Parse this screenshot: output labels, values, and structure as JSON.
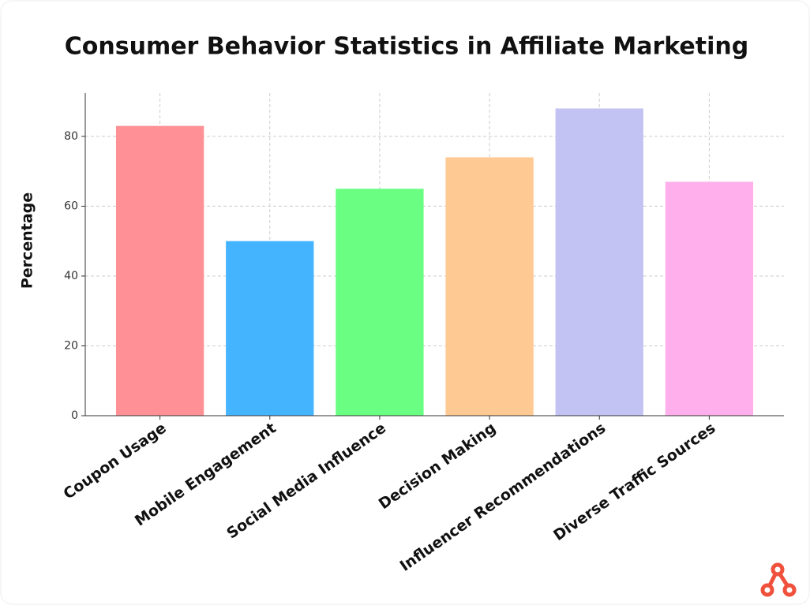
{
  "chart_data": {
    "type": "bar",
    "title": "Consumer Behavior Statistics in Affiliate Marketing",
    "y_label": "Percentage",
    "categories": [
      "Coupon Usage",
      "Mobile Engagement",
      "Social Media Influence",
      "Decision Making",
      "Influencer Recommendations",
      "Diverse Traffic Sources"
    ],
    "values": [
      83,
      50,
      65,
      74,
      88,
      67
    ],
    "colors": [
      "#ff9196",
      "#45b4ff",
      "#6aff83",
      "#ffc993",
      "#c3c3f3",
      "#ffb0ec"
    ],
    "ylim": [
      0,
      92.4
    ],
    "yticks": [
      0,
      20,
      40,
      60,
      80
    ],
    "grid": true
  }
}
